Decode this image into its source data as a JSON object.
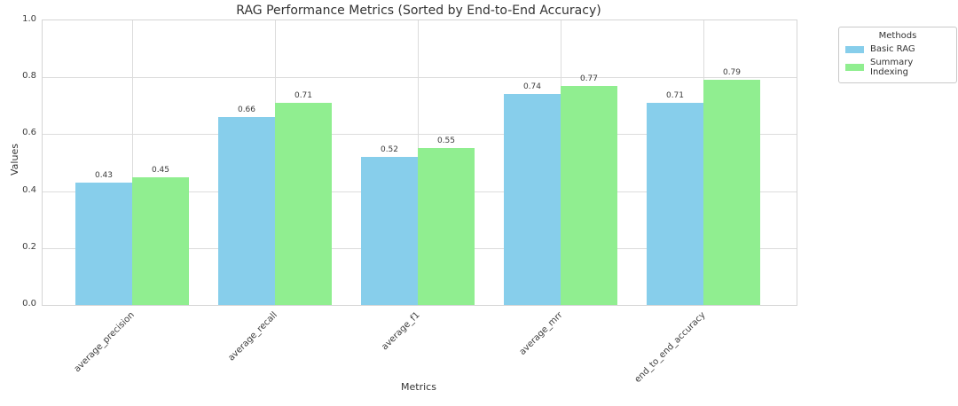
{
  "chart_data": {
    "type": "bar",
    "title": "RAG Performance Metrics (Sorted by End-to-End Accuracy)",
    "xlabel": "Metrics",
    "ylabel": "Values",
    "categories": [
      "average_precision",
      "average_recall",
      "average_f1",
      "average_mrr",
      "end_to_end_accuracy"
    ],
    "series": [
      {
        "name": "Basic RAG",
        "color": "#87CEEB",
        "values": [
          0.43,
          0.66,
          0.52,
          0.74,
          0.71
        ]
      },
      {
        "name": "Summary Indexing",
        "color": "#90EE90",
        "values": [
          0.45,
          0.71,
          0.55,
          0.77,
          0.79
        ]
      }
    ],
    "ylim": [
      0.0,
      1.0
    ],
    "yticks": [
      "0.0",
      "0.2",
      "0.4",
      "0.6",
      "0.8",
      "1.0"
    ],
    "grid": "horizontal and vertical, light gray",
    "legend": {
      "title": "Methods",
      "position": "outside upper right"
    },
    "colors": {
      "grid": "#dcdcdc",
      "spine": "#d5d5d5",
      "text": "#333333"
    }
  }
}
